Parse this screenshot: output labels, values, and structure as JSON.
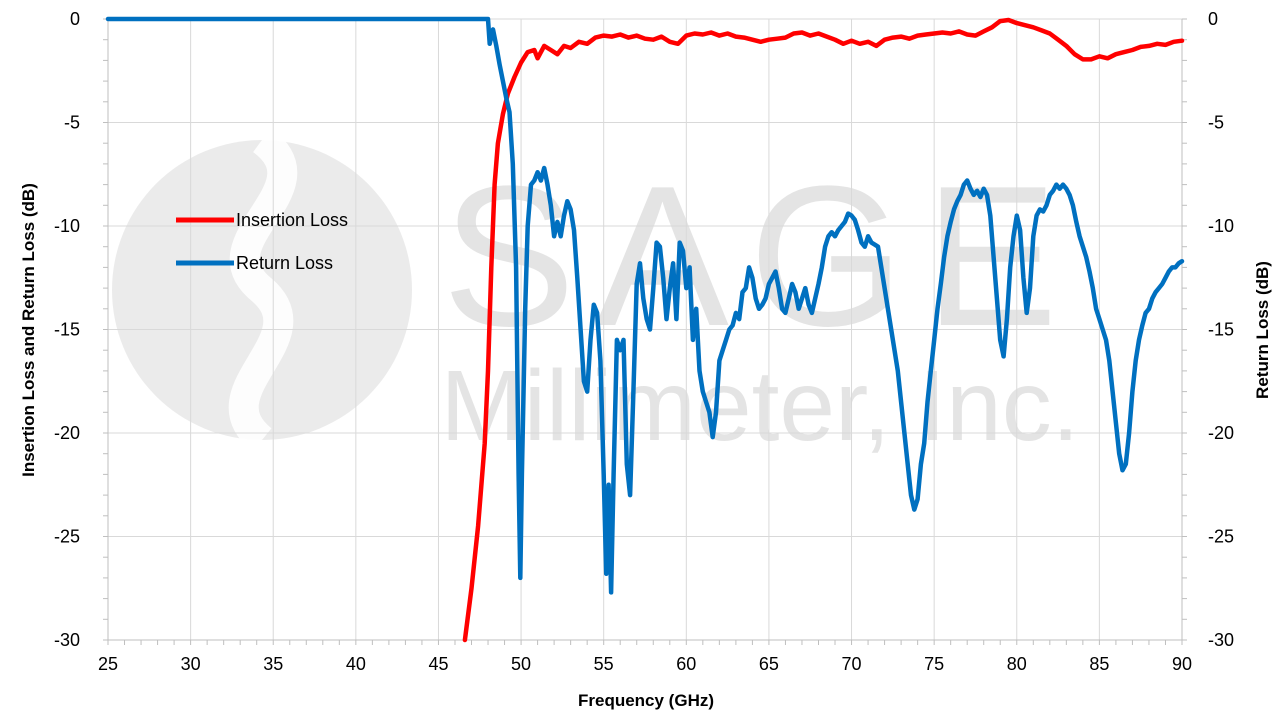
{
  "watermark": {
    "line1": "SAGE",
    "line2": "Millimeter, Inc.",
    "color": "#d9d9d9"
  },
  "chart_data": {
    "type": "line",
    "xlabel": "Frequency (GHz)",
    "ylabel_left": "Insertion Loss and Return Loss (dB)",
    "ylabel_right": "Return Loss (dB)",
    "xlim": [
      25,
      90
    ],
    "ylim": [
      -30,
      0
    ],
    "x_ticks": [
      "25",
      "30",
      "35",
      "40",
      "45",
      "50",
      "55",
      "60",
      "65",
      "70",
      "75",
      "80",
      "85",
      "90"
    ],
    "y_ticks": [
      "0",
      "-5",
      "-10",
      "-15",
      "-20",
      "-25",
      "-30"
    ],
    "grid": true,
    "legend": "left-center",
    "series": [
      {
        "name": "Insertion Loss",
        "color": "#ff0000",
        "points": [
          [
            46.6,
            -30
          ],
          [
            47.0,
            -27.5
          ],
          [
            47.4,
            -24.5
          ],
          [
            47.8,
            -20.5
          ],
          [
            48.0,
            -17
          ],
          [
            48.2,
            -12
          ],
          [
            48.4,
            -8
          ],
          [
            48.6,
            -6
          ],
          [
            48.9,
            -4.6
          ],
          [
            49.2,
            -3.6
          ],
          [
            49.6,
            -2.8
          ],
          [
            50.0,
            -2.1
          ],
          [
            50.4,
            -1.6
          ],
          [
            50.8,
            -1.5
          ],
          [
            51.0,
            -1.9
          ],
          [
            51.4,
            -1.3
          ],
          [
            51.8,
            -1.5
          ],
          [
            52.2,
            -1.7
          ],
          [
            52.6,
            -1.3
          ],
          [
            53.0,
            -1.4
          ],
          [
            53.5,
            -1.1
          ],
          [
            54.0,
            -1.2
          ],
          [
            54.5,
            -0.9
          ],
          [
            55.0,
            -0.8
          ],
          [
            55.5,
            -0.85
          ],
          [
            56.0,
            -0.75
          ],
          [
            56.5,
            -0.9
          ],
          [
            57.0,
            -0.8
          ],
          [
            57.5,
            -0.95
          ],
          [
            58.0,
            -1.0
          ],
          [
            58.5,
            -0.85
          ],
          [
            59.0,
            -1.1
          ],
          [
            59.5,
            -1.2
          ],
          [
            60.0,
            -0.8
          ],
          [
            60.5,
            -0.7
          ],
          [
            61.0,
            -0.75
          ],
          [
            61.5,
            -0.65
          ],
          [
            62.0,
            -0.8
          ],
          [
            62.5,
            -0.7
          ],
          [
            63.0,
            -0.85
          ],
          [
            63.5,
            -0.9
          ],
          [
            64.0,
            -1.0
          ],
          [
            64.5,
            -1.1
          ],
          [
            65.0,
            -1.0
          ],
          [
            65.5,
            -0.95
          ],
          [
            66.0,
            -0.9
          ],
          [
            66.5,
            -0.7
          ],
          [
            67.0,
            -0.65
          ],
          [
            67.5,
            -0.8
          ],
          [
            68.0,
            -0.7
          ],
          [
            68.5,
            -0.85
          ],
          [
            69.0,
            -1.0
          ],
          [
            69.5,
            -1.2
          ],
          [
            70.0,
            -1.05
          ],
          [
            70.5,
            -1.2
          ],
          [
            71.0,
            -1.1
          ],
          [
            71.5,
            -1.3
          ],
          [
            72.0,
            -1.0
          ],
          [
            72.5,
            -0.9
          ],
          [
            73.0,
            -0.85
          ],
          [
            73.5,
            -0.95
          ],
          [
            74.0,
            -0.8
          ],
          [
            74.5,
            -0.75
          ],
          [
            75.0,
            -0.7
          ],
          [
            75.5,
            -0.65
          ],
          [
            76.0,
            -0.7
          ],
          [
            76.5,
            -0.6
          ],
          [
            77.0,
            -0.75
          ],
          [
            77.5,
            -0.8
          ],
          [
            78.0,
            -0.6
          ],
          [
            78.5,
            -0.4
          ],
          [
            79.0,
            -0.1
          ],
          [
            79.5,
            -0.05
          ],
          [
            80.0,
            -0.2
          ],
          [
            80.5,
            -0.3
          ],
          [
            81.0,
            -0.4
          ],
          [
            81.5,
            -0.55
          ],
          [
            82.0,
            -0.7
          ],
          [
            82.5,
            -1.0
          ],
          [
            83.0,
            -1.3
          ],
          [
            83.5,
            -1.7
          ],
          [
            84.0,
            -1.95
          ],
          [
            84.5,
            -1.95
          ],
          [
            85.0,
            -1.8
          ],
          [
            85.5,
            -1.9
          ],
          [
            86.0,
            -1.7
          ],
          [
            86.5,
            -1.6
          ],
          [
            87.0,
            -1.5
          ],
          [
            87.5,
            -1.35
          ],
          [
            88.0,
            -1.3
          ],
          [
            88.5,
            -1.2
          ],
          [
            89.0,
            -1.25
          ],
          [
            89.5,
            -1.1
          ],
          [
            90.0,
            -1.05
          ]
        ]
      },
      {
        "name": "Return Loss",
        "color": "#0070c0",
        "points": [
          [
            25.0,
            0
          ],
          [
            48.0,
            0
          ],
          [
            48.1,
            -1.2
          ],
          [
            48.3,
            -0.5
          ],
          [
            48.5,
            -1.3
          ],
          [
            48.7,
            -2.2
          ],
          [
            48.9,
            -3.0
          ],
          [
            49.1,
            -3.8
          ],
          [
            49.3,
            -4.5
          ],
          [
            49.5,
            -7.0
          ],
          [
            49.7,
            -12.0
          ],
          [
            49.85,
            -22.0
          ],
          [
            49.95,
            -27.0
          ],
          [
            50.05,
            -22.0
          ],
          [
            50.25,
            -14.0
          ],
          [
            50.4,
            -10.0
          ],
          [
            50.6,
            -8.0
          ],
          [
            50.8,
            -7.8
          ],
          [
            51.0,
            -7.4
          ],
          [
            51.2,
            -7.8
          ],
          [
            51.4,
            -7.2
          ],
          [
            51.6,
            -8.0
          ],
          [
            51.8,
            -9.0
          ],
          [
            52.0,
            -10.5
          ],
          [
            52.2,
            -9.8
          ],
          [
            52.4,
            -10.5
          ],
          [
            52.6,
            -9.5
          ],
          [
            52.8,
            -8.8
          ],
          [
            53.0,
            -9.2
          ],
          [
            53.2,
            -10.2
          ],
          [
            53.4,
            -12.5
          ],
          [
            53.6,
            -15.0
          ],
          [
            53.8,
            -17.5
          ],
          [
            54.0,
            -18.0
          ],
          [
            54.2,
            -15.5
          ],
          [
            54.4,
            -13.8
          ],
          [
            54.6,
            -14.2
          ],
          [
            54.8,
            -16.5
          ],
          [
            55.0,
            -22.0
          ],
          [
            55.15,
            -26.8
          ],
          [
            55.3,
            -22.5
          ],
          [
            55.45,
            -27.7
          ],
          [
            55.6,
            -22.0
          ],
          [
            55.8,
            -15.5
          ],
          [
            56.0,
            -16.0
          ],
          [
            56.2,
            -15.5
          ],
          [
            56.4,
            -21.5
          ],
          [
            56.6,
            -23.0
          ],
          [
            56.8,
            -18.0
          ],
          [
            57.0,
            -12.8
          ],
          [
            57.2,
            -11.8
          ],
          [
            57.4,
            -13.5
          ],
          [
            57.6,
            -14.5
          ],
          [
            57.8,
            -15.0
          ],
          [
            58.0,
            -13.0
          ],
          [
            58.2,
            -10.8
          ],
          [
            58.4,
            -11.0
          ],
          [
            58.6,
            -12.5
          ],
          [
            58.8,
            -14.5
          ],
          [
            59.0,
            -13.0
          ],
          [
            59.2,
            -11.8
          ],
          [
            59.4,
            -14.5
          ],
          [
            59.6,
            -10.8
          ],
          [
            59.8,
            -11.2
          ],
          [
            60.0,
            -13.0
          ],
          [
            60.2,
            -12.0
          ],
          [
            60.4,
            -15.5
          ],
          [
            60.6,
            -14.0
          ],
          [
            60.8,
            -17.0
          ],
          [
            61.0,
            -18.0
          ],
          [
            61.2,
            -18.5
          ],
          [
            61.4,
            -19.0
          ],
          [
            61.6,
            -20.2
          ],
          [
            61.8,
            -19.0
          ],
          [
            62.0,
            -16.5
          ],
          [
            62.2,
            -16.0
          ],
          [
            62.4,
            -15.5
          ],
          [
            62.6,
            -15.0
          ],
          [
            62.8,
            -14.8
          ],
          [
            63.0,
            -14.2
          ],
          [
            63.2,
            -14.5
          ],
          [
            63.4,
            -13.2
          ],
          [
            63.6,
            -13.0
          ],
          [
            63.8,
            -12.0
          ],
          [
            64.0,
            -12.5
          ],
          [
            64.2,
            -13.5
          ],
          [
            64.4,
            -14.0
          ],
          [
            64.6,
            -13.8
          ],
          [
            64.8,
            -13.5
          ],
          [
            65.0,
            -12.8
          ],
          [
            65.2,
            -12.5
          ],
          [
            65.4,
            -12.2
          ],
          [
            65.6,
            -13.0
          ],
          [
            65.8,
            -14.0
          ],
          [
            66.0,
            -14.2
          ],
          [
            66.2,
            -13.5
          ],
          [
            66.4,
            -12.8
          ],
          [
            66.6,
            -13.2
          ],
          [
            66.8,
            -14.0
          ],
          [
            67.0,
            -13.5
          ],
          [
            67.2,
            -13.0
          ],
          [
            67.4,
            -13.8
          ],
          [
            67.6,
            -14.2
          ],
          [
            67.8,
            -13.5
          ],
          [
            68.0,
            -12.8
          ],
          [
            68.2,
            -12.0
          ],
          [
            68.4,
            -11.0
          ],
          [
            68.6,
            -10.5
          ],
          [
            68.8,
            -10.3
          ],
          [
            69.0,
            -10.5
          ],
          [
            69.2,
            -10.2
          ],
          [
            69.4,
            -10.0
          ],
          [
            69.6,
            -9.8
          ],
          [
            69.8,
            -9.4
          ],
          [
            70.0,
            -9.5
          ],
          [
            70.2,
            -9.7
          ],
          [
            70.4,
            -10.2
          ],
          [
            70.6,
            -10.8
          ],
          [
            70.8,
            -11.0
          ],
          [
            71.0,
            -10.5
          ],
          [
            71.2,
            -10.8
          ],
          [
            71.4,
            -10.9
          ],
          [
            71.6,
            -11.0
          ],
          [
            71.8,
            -12.0
          ],
          [
            72.0,
            -13.0
          ],
          [
            72.2,
            -14.0
          ],
          [
            72.4,
            -15.0
          ],
          [
            72.6,
            -16.0
          ],
          [
            72.8,
            -17.0
          ],
          [
            73.0,
            -18.5
          ],
          [
            73.2,
            -20.0
          ],
          [
            73.4,
            -21.5
          ],
          [
            73.6,
            -23.0
          ],
          [
            73.8,
            -23.7
          ],
          [
            74.0,
            -23.2
          ],
          [
            74.2,
            -21.5
          ],
          [
            74.4,
            -20.5
          ],
          [
            74.6,
            -18.5
          ],
          [
            74.8,
            -17.0
          ],
          [
            75.0,
            -15.5
          ],
          [
            75.2,
            -14.0
          ],
          [
            75.4,
            -12.8
          ],
          [
            75.6,
            -11.5
          ],
          [
            75.8,
            -10.5
          ],
          [
            76.0,
            -9.8
          ],
          [
            76.2,
            -9.2
          ],
          [
            76.4,
            -8.8
          ],
          [
            76.6,
            -8.5
          ],
          [
            76.8,
            -8.0
          ],
          [
            77.0,
            -7.8
          ],
          [
            77.2,
            -8.2
          ],
          [
            77.4,
            -8.5
          ],
          [
            77.6,
            -8.3
          ],
          [
            77.8,
            -8.6
          ],
          [
            78.0,
            -8.2
          ],
          [
            78.2,
            -8.5
          ],
          [
            78.4,
            -9.5
          ],
          [
            78.6,
            -11.5
          ],
          [
            78.8,
            -13.5
          ],
          [
            79.0,
            -15.5
          ],
          [
            79.2,
            -16.3
          ],
          [
            79.4,
            -14.5
          ],
          [
            79.6,
            -12.0
          ],
          [
            79.8,
            -10.5
          ],
          [
            80.0,
            -9.5
          ],
          [
            80.2,
            -10.2
          ],
          [
            80.4,
            -12.5
          ],
          [
            80.6,
            -14.2
          ],
          [
            80.8,
            -13.0
          ],
          [
            81.0,
            -10.5
          ],
          [
            81.2,
            -9.5
          ],
          [
            81.4,
            -9.2
          ],
          [
            81.6,
            -9.3
          ],
          [
            81.8,
            -9.0
          ],
          [
            82.0,
            -8.5
          ],
          [
            82.2,
            -8.3
          ],
          [
            82.4,
            -8.0
          ],
          [
            82.6,
            -8.2
          ],
          [
            82.8,
            -8.0
          ],
          [
            83.0,
            -8.2
          ],
          [
            83.2,
            -8.5
          ],
          [
            83.4,
            -9.0
          ],
          [
            83.6,
            -9.8
          ],
          [
            83.8,
            -10.5
          ],
          [
            84.0,
            -11.0
          ],
          [
            84.2,
            -11.5
          ],
          [
            84.4,
            -12.2
          ],
          [
            84.6,
            -13.0
          ],
          [
            84.8,
            -14.0
          ],
          [
            85.0,
            -14.5
          ],
          [
            85.2,
            -15.0
          ],
          [
            85.4,
            -15.5
          ],
          [
            85.6,
            -16.5
          ],
          [
            85.8,
            -18.0
          ],
          [
            86.0,
            -19.5
          ],
          [
            86.2,
            -21.0
          ],
          [
            86.4,
            -21.8
          ],
          [
            86.6,
            -21.5
          ],
          [
            86.8,
            -20.0
          ],
          [
            87.0,
            -18.0
          ],
          [
            87.2,
            -16.5
          ],
          [
            87.4,
            -15.5
          ],
          [
            87.6,
            -14.8
          ],
          [
            87.8,
            -14.2
          ],
          [
            88.0,
            -14.0
          ],
          [
            88.2,
            -13.5
          ],
          [
            88.4,
            -13.2
          ],
          [
            88.6,
            -13.0
          ],
          [
            88.8,
            -12.8
          ],
          [
            89.0,
            -12.5
          ],
          [
            89.2,
            -12.2
          ],
          [
            89.4,
            -12.0
          ],
          [
            89.6,
            -12.0
          ],
          [
            89.8,
            -11.8
          ],
          [
            90.0,
            -11.7
          ]
        ]
      }
    ]
  }
}
